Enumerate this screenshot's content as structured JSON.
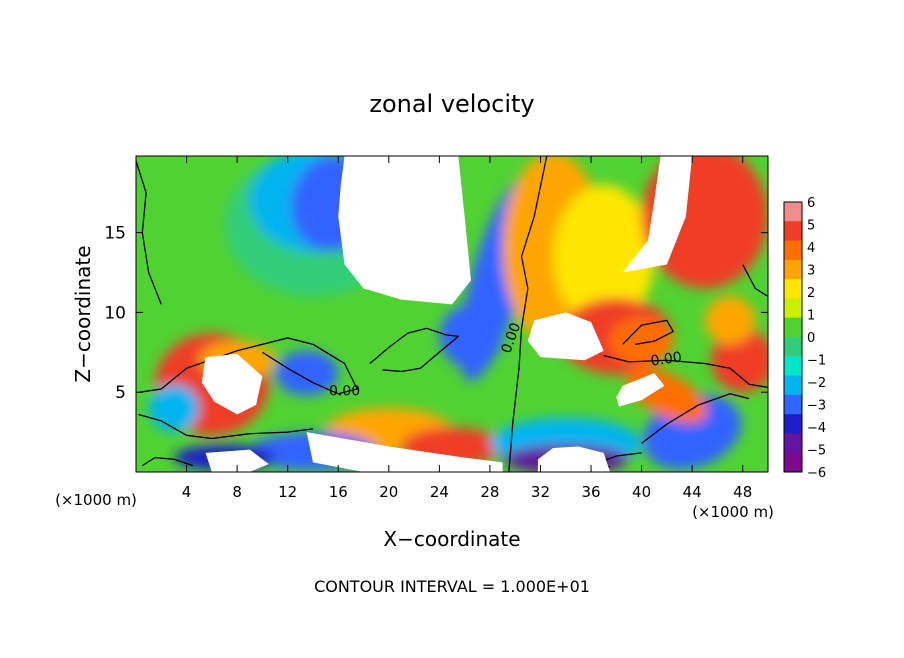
{
  "chart_data": {
    "type": "heatmap",
    "title": "zonal velocity",
    "xlabel": "X−coordinate",
    "ylabel": "Z−coordinate",
    "x_unit_left": "(×1000 m)",
    "x_unit_right": "(×1000 m)",
    "xlim": [
      0,
      50
    ],
    "ylim": [
      0,
      19.8
    ],
    "xticks": [
      4,
      8,
      12,
      16,
      20,
      24,
      28,
      32,
      36,
      40,
      44,
      48
    ],
    "yticks": [
      5,
      10,
      15
    ],
    "colorbar": {
      "ticks": [
        6,
        5,
        4,
        3,
        2,
        1,
        0,
        -1,
        -2,
        -3,
        -4,
        -5,
        -6
      ],
      "colors": [
        "#f08c8c",
        "#f03c28",
        "#ff6e00",
        "#ffa500",
        "#ffe600",
        "#c8f000",
        "#50d232",
        "#32cd78",
        "#00e6c8",
        "#00b4f0",
        "#3264ff",
        "#1e1ec8",
        "#6414a0",
        "#7d0a8c"
      ]
    },
    "contour_labels": [
      {
        "text": "0.00",
        "x": 16.5,
        "y": 4.8
      },
      {
        "text": "0.00",
        "x": 30.0,
        "y": 8.3
      },
      {
        "text": "0.00",
        "x": 42.0,
        "y": 6.8
      }
    ],
    "footer": "CONTOUR INTERVAL = 1.000E+01"
  }
}
